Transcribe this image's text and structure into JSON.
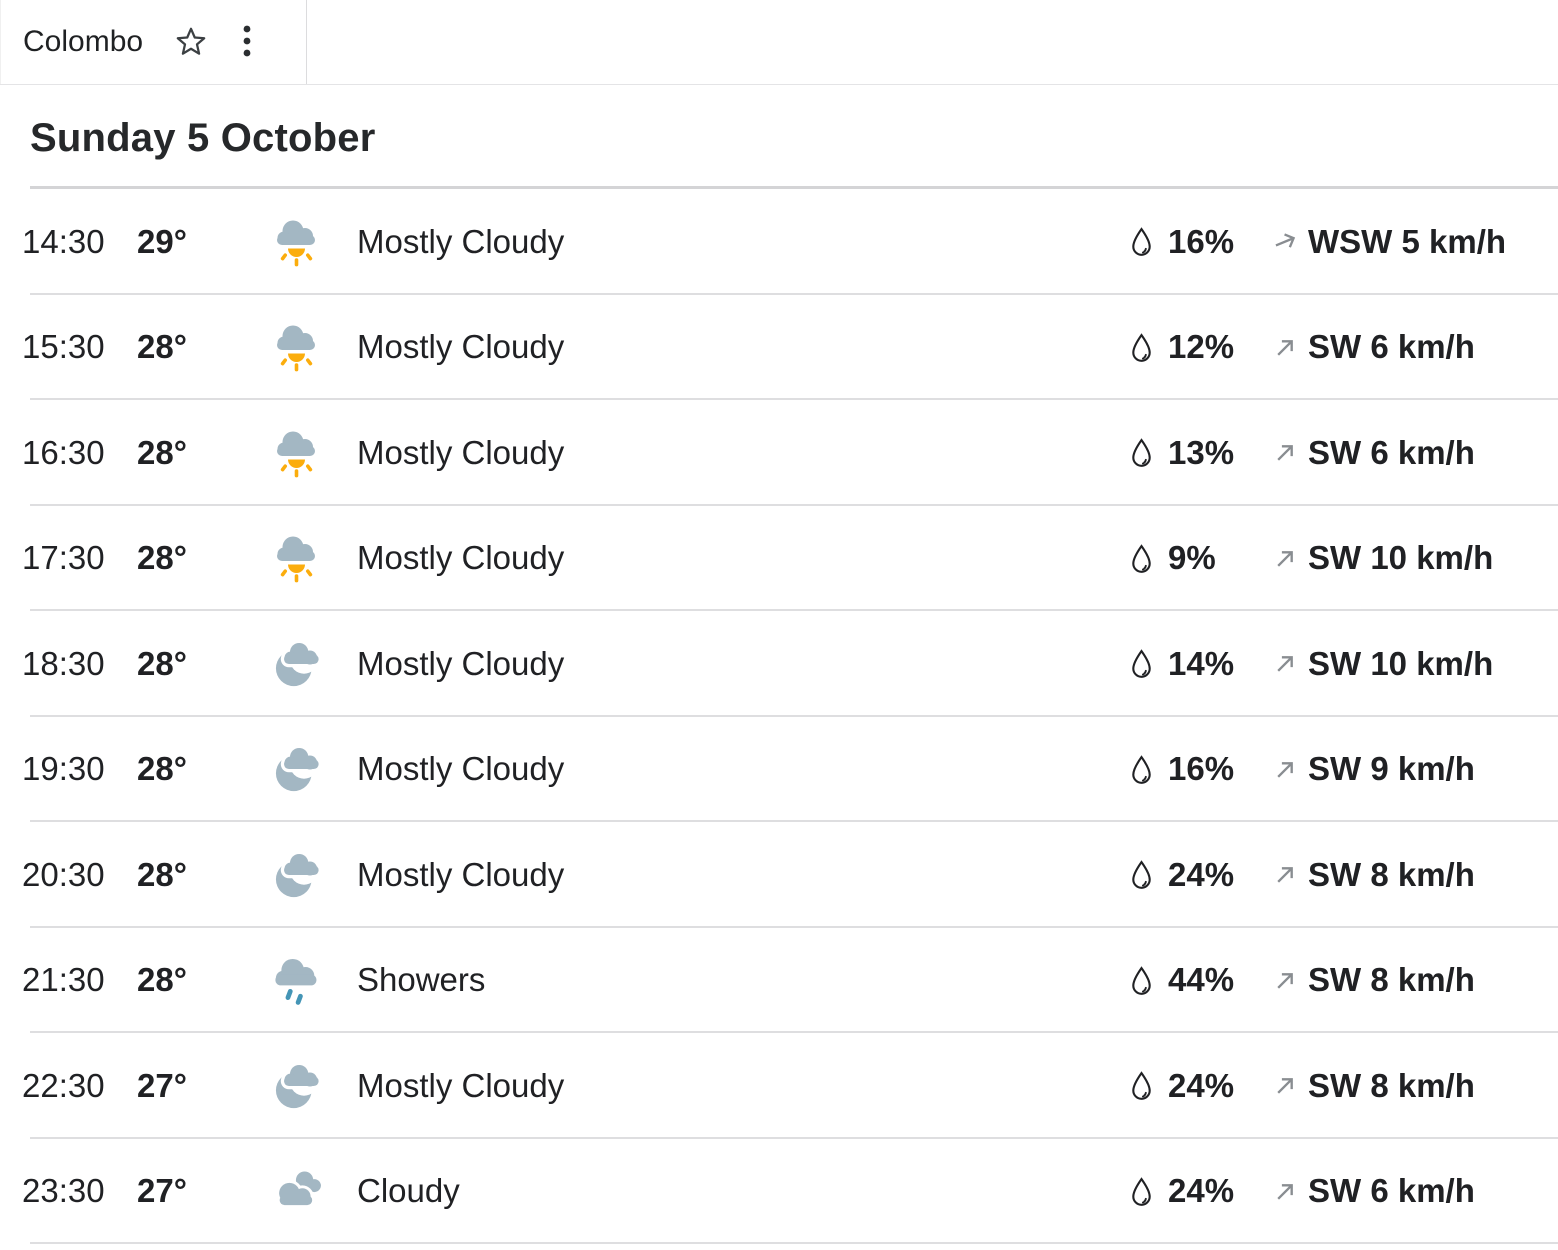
{
  "tab": {
    "title": "Colombo",
    "star_icon": "favorite-star",
    "menu_icon": "kebab-menu"
  },
  "heading": "Sunday 5 October",
  "colors": {
    "text": "#202124",
    "cloud": "#a3b7c3",
    "sun": "#fbad0d",
    "rain": "#4495b6",
    "wind_arrow": "#898d91",
    "divider": "#dedee0"
  },
  "rows": [
    {
      "time": "14:30",
      "temp": "29°",
      "icon": "mostly-cloudy-day",
      "condition": "Mostly Cloudy",
      "precip": "16%",
      "wind": "WSW 5 km/h",
      "wind_dir": "WSW"
    },
    {
      "time": "15:30",
      "temp": "28°",
      "icon": "mostly-cloudy-day",
      "condition": "Mostly Cloudy",
      "precip": "12%",
      "wind": "SW 6 km/h",
      "wind_dir": "SW"
    },
    {
      "time": "16:30",
      "temp": "28°",
      "icon": "mostly-cloudy-day",
      "condition": "Mostly Cloudy",
      "precip": "13%",
      "wind": "SW 6 km/h",
      "wind_dir": "SW"
    },
    {
      "time": "17:30",
      "temp": "28°",
      "icon": "mostly-cloudy-day",
      "condition": "Mostly Cloudy",
      "precip": "9%",
      "wind": "SW 10 km/h",
      "wind_dir": "SW"
    },
    {
      "time": "18:30",
      "temp": "28°",
      "icon": "mostly-cloudy-night",
      "condition": "Mostly Cloudy",
      "precip": "14%",
      "wind": "SW 10 km/h",
      "wind_dir": "SW"
    },
    {
      "time": "19:30",
      "temp": "28°",
      "icon": "mostly-cloudy-night",
      "condition": "Mostly Cloudy",
      "precip": "16%",
      "wind": "SW 9 km/h",
      "wind_dir": "SW"
    },
    {
      "time": "20:30",
      "temp": "28°",
      "icon": "mostly-cloudy-night",
      "condition": "Mostly Cloudy",
      "precip": "24%",
      "wind": "SW 8 km/h",
      "wind_dir": "SW"
    },
    {
      "time": "21:30",
      "temp": "28°",
      "icon": "showers",
      "condition": "Showers",
      "precip": "44%",
      "wind": "SW 8 km/h",
      "wind_dir": "SW"
    },
    {
      "time": "22:30",
      "temp": "27°",
      "icon": "mostly-cloudy-night",
      "condition": "Mostly Cloudy",
      "precip": "24%",
      "wind": "SW 8 km/h",
      "wind_dir": "SW"
    },
    {
      "time": "23:30",
      "temp": "27°",
      "icon": "cloudy",
      "condition": "Cloudy",
      "precip": "24%",
      "wind": "SW 6 km/h",
      "wind_dir": "SW"
    }
  ]
}
